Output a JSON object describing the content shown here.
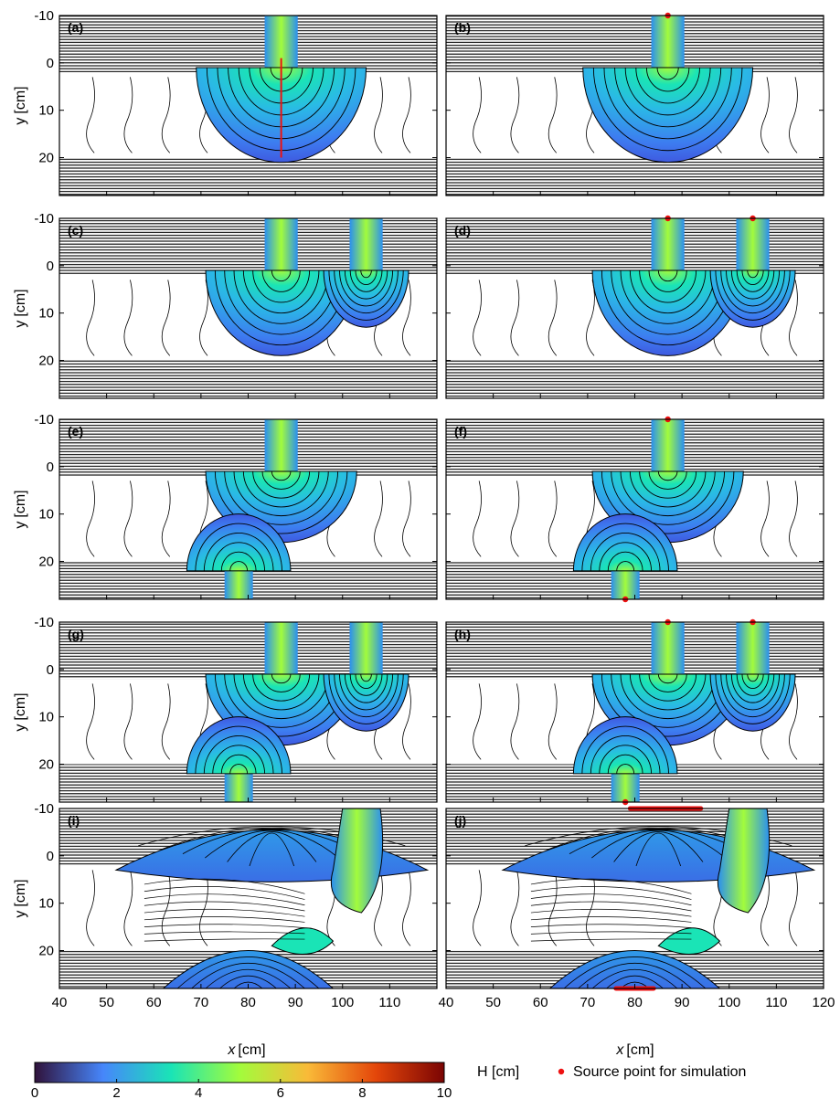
{
  "chart_data": {
    "type": "heatmap",
    "description_kind": "small-multiples contour / filled heatmap panels",
    "xlabel_var": "x",
    "xlabel_unit": "[cm]",
    "ylabel_var": "y",
    "ylabel_unit": "[cm]",
    "xlim": [
      40,
      120
    ],
    "ylim": [
      -10,
      28
    ],
    "xticks": [
      40,
      50,
      60,
      70,
      80,
      90,
      100,
      110,
      120
    ],
    "xtick_labels_left": [
      "40",
      "50",
      "60",
      "70",
      "80",
      "90",
      "100",
      "110"
    ],
    "xtick_labels_right": [
      "40",
      "50",
      "60",
      "70",
      "80",
      "90",
      "100",
      "110",
      "120"
    ],
    "yticks": [
      -10,
      0,
      10,
      20
    ],
    "ytick_labels": [
      "-10",
      "0",
      "10",
      "20"
    ],
    "panels": [
      {
        "id": "a",
        "label": "(a)",
        "col": 0,
        "row": 0,
        "sources": [
          {
            "x": 87,
            "y": -10
          }
        ],
        "source_points": [],
        "transect": {
          "x": 87,
          "y0": -1,
          "y1": 20
        }
      },
      {
        "id": "b",
        "label": "(b)",
        "col": 1,
        "row": 0,
        "sources": [
          {
            "x": 87,
            "y": -10
          }
        ],
        "source_points": [
          {
            "x": 87,
            "y": -10
          }
        ]
      },
      {
        "id": "c",
        "label": "(c)",
        "col": 0,
        "row": 1,
        "sources": [
          {
            "x": 87,
            "y": -10
          },
          {
            "x": 105,
            "y": -10
          }
        ],
        "source_points": []
      },
      {
        "id": "d",
        "label": "(d)",
        "col": 1,
        "row": 1,
        "sources": [
          {
            "x": 87,
            "y": -10
          },
          {
            "x": 105,
            "y": -10
          }
        ],
        "source_points": [
          {
            "x": 87,
            "y": -10
          },
          {
            "x": 105,
            "y": -10
          }
        ]
      },
      {
        "id": "e",
        "label": "(e)",
        "col": 0,
        "row": 2,
        "sources": [
          {
            "x": 87,
            "y": -10
          },
          {
            "x": 78,
            "y": 28
          }
        ],
        "source_points": []
      },
      {
        "id": "f",
        "label": "(f)",
        "col": 1,
        "row": 2,
        "sources": [
          {
            "x": 87,
            "y": -10
          },
          {
            "x": 78,
            "y": 28
          }
        ],
        "source_points": [
          {
            "x": 87,
            "y": -10
          },
          {
            "x": 78,
            "y": 28
          }
        ]
      },
      {
        "id": "g",
        "label": "(g)",
        "col": 0,
        "row": 3,
        "sources": [
          {
            "x": 87,
            "y": -10
          },
          {
            "x": 105,
            "y": -10
          },
          {
            "x": 78,
            "y": 28
          }
        ],
        "source_points": []
      },
      {
        "id": "h",
        "label": "(h)",
        "col": 1,
        "row": 3,
        "sources": [
          {
            "x": 87,
            "y": -10
          },
          {
            "x": 105,
            "y": -10
          },
          {
            "x": 78,
            "y": 28
          }
        ],
        "source_points": [
          {
            "x": 87,
            "y": -10
          },
          {
            "x": 105,
            "y": -10
          },
          {
            "x": 78,
            "y": 28
          }
        ]
      },
      {
        "id": "i",
        "label": "(i)",
        "col": 0,
        "row": 4,
        "sources": [],
        "source_points": [],
        "source_lines": []
      },
      {
        "id": "j",
        "label": "(j)",
        "col": 1,
        "row": 4,
        "sources": [],
        "source_points": [],
        "source_lines": [
          {
            "x0": 79,
            "x1": 94,
            "y": -10
          },
          {
            "x0": 76,
            "x1": 84,
            "y": 28
          }
        ]
      }
    ],
    "colorbar": {
      "label": "H [cm]",
      "range": [
        0,
        10
      ],
      "ticks": [
        0,
        2,
        4,
        6,
        8,
        10
      ],
      "tick_labels": [
        "0",
        "2",
        "4",
        "6",
        "8",
        "10"
      ],
      "colormap": [
        "#30123b",
        "#4686fb",
        "#1ae4b6",
        "#a2fc3c",
        "#f9ba38",
        "#e4460a",
        "#7a0403"
      ]
    },
    "legend": [
      {
        "marker": "red-dot",
        "label": "Source point for simulation"
      }
    ]
  },
  "colors": {
    "source_marker": "#ee1111",
    "contour": "#000000",
    "frame": "#000000"
  }
}
